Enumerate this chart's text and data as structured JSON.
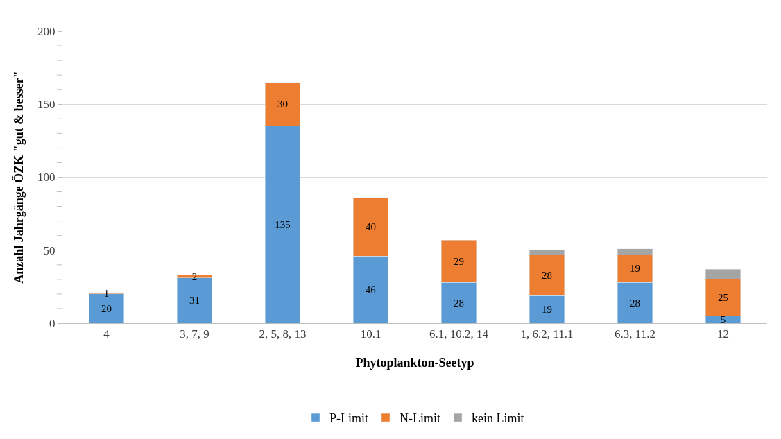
{
  "chart_data": {
    "type": "bar",
    "stacked": true,
    "xlabel": "Phytoplankton-Seetyp",
    "ylabel": "Anzahl Jahrgänge ÖZK \"gut & besser\"",
    "categories": [
      "4",
      "3, 7, 9",
      "2, 5, 8, 13",
      "10.1",
      "6.1, 10.2, 14",
      "1, 6.2, 11.1",
      "6.3, 11.2",
      "12"
    ],
    "series": [
      {
        "name": "P-Limit",
        "color": "#5b9bd5",
        "values": [
          20,
          31,
          135,
          46,
          28,
          19,
          28,
          5
        ],
        "value_labels": [
          "20",
          "31",
          "135",
          "46",
          "28",
          "19",
          "28",
          "5"
        ]
      },
      {
        "name": "N-Limit",
        "color": "#ed7d31",
        "values": [
          1,
          2,
          30,
          40,
          29,
          28,
          19,
          25
        ],
        "value_labels": [
          "1",
          "2",
          "30",
          "40",
          "29",
          "28",
          "19",
          "25"
        ]
      },
      {
        "name": "kein Limit",
        "color": "#a5a5a5",
        "values": [
          null,
          null,
          null,
          null,
          null,
          3,
          4,
          7
        ],
        "value_labels": [
          null,
          null,
          null,
          null,
          null,
          null,
          null,
          null
        ]
      }
    ],
    "ylim": [
      0,
      200
    ],
    "yticks": [
      0,
      {
        "value": 10,
        "label": null
      },
      {
        "value": 20,
        "label": null
      },
      {
        "value": 30,
        "label": null
      },
      {
        "value": 40,
        "label": null
      },
      50,
      {
        "value": 60,
        "label": null
      },
      {
        "value": 70,
        "label": null
      },
      {
        "value": 80,
        "label": null
      },
      {
        "value": 90,
        "label": null
      },
      100,
      {
        "value": 110,
        "label": null
      },
      {
        "value": 120,
        "label": null
      },
      {
        "value": 130,
        "label": null
      },
      {
        "value": 140,
        "label": null
      },
      150,
      {
        "value": 160,
        "label": null
      },
      {
        "value": 170,
        "label": null
      },
      {
        "value": 180,
        "label": null
      },
      {
        "value": 190,
        "label": null
      },
      200
    ],
    "grid": "y",
    "legend": "bottom"
  }
}
